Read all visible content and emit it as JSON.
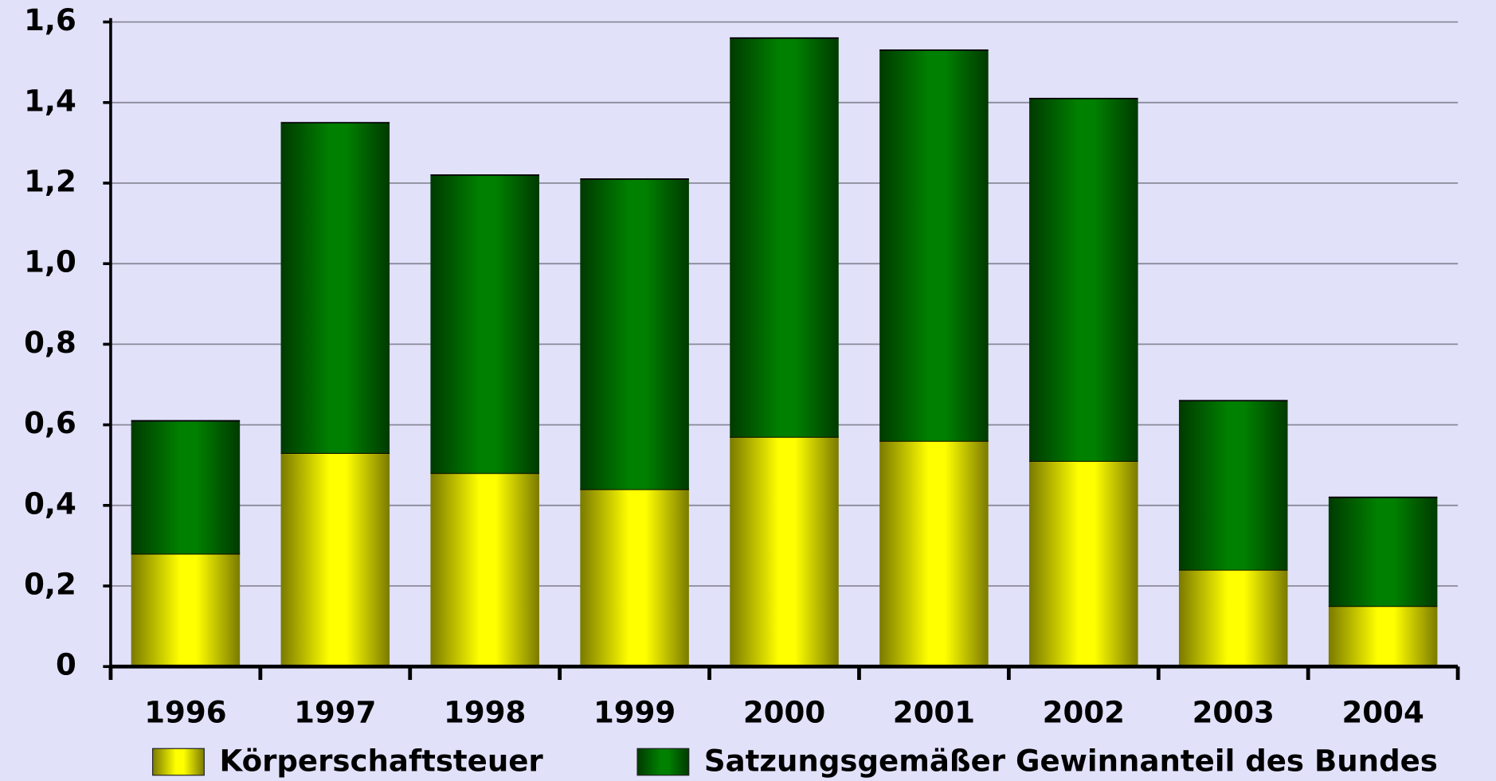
{
  "chart_data": {
    "type": "stacked_bar",
    "categories": [
      "1996",
      "1997",
      "1998",
      "1999",
      "2000",
      "2001",
      "2002",
      "2003",
      "2004"
    ],
    "series": [
      {
        "name": "Körperschaftsteuer",
        "color": "#ffff00",
        "values": [
          0.28,
          0.53,
          0.48,
          0.44,
          0.57,
          0.56,
          0.51,
          0.24,
          0.15
        ]
      },
      {
        "name": "Satzungsgemäßer Gewinnanteil des Bundes",
        "color": "#008000",
        "values": [
          0.33,
          0.82,
          0.74,
          0.77,
          0.99,
          0.97,
          0.9,
          0.42,
          0.27
        ]
      }
    ],
    "ylim": [
      0,
      1.6
    ],
    "yticks": [
      0,
      {
        "value": 0.2,
        "label": "0,2"
      },
      {
        "value": 0.4,
        "label": "0,4"
      },
      {
        "value": 0.6,
        "label": "0,6"
      },
      {
        "value": 0.8,
        "label": "0,8"
      },
      {
        "value": 1.0,
        "label": "1,0"
      },
      {
        "value": 1.2,
        "label": "1,2"
      },
      {
        "value": 1.4,
        "label": "1,4"
      },
      {
        "value": 1.6,
        "label": "1,6"
      }
    ],
    "grid": true,
    "legend": "bottom"
  }
}
